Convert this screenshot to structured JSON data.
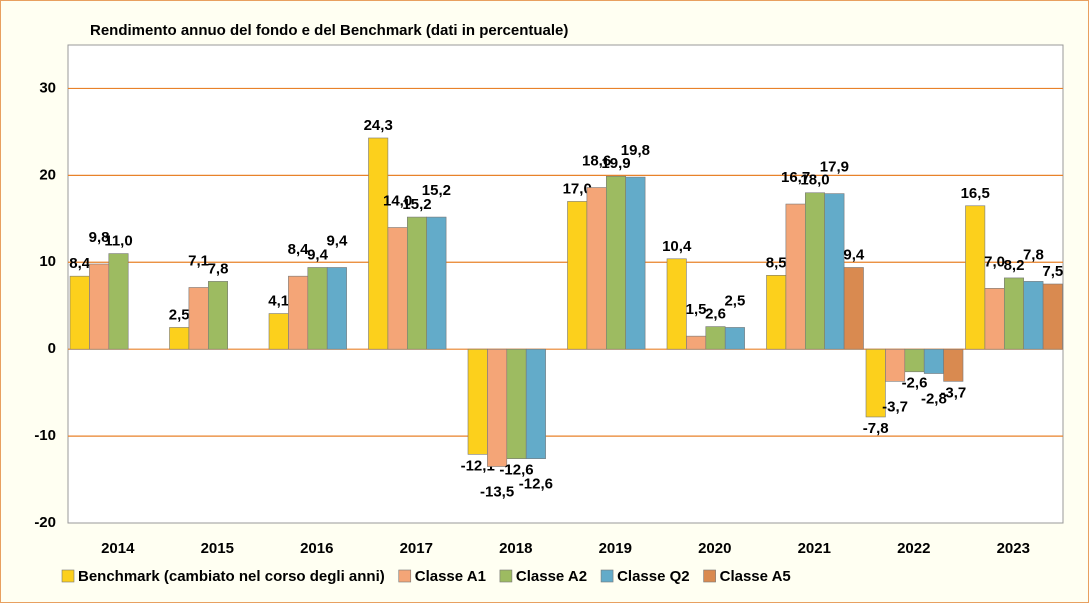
{
  "chart_data": {
    "type": "bar",
    "title": "Rendimento annuo del fondo e del Benchmark (dati in percentuale)",
    "categories": [
      "2014",
      "2015",
      "2016",
      "2017",
      "2018",
      "2019",
      "2020",
      "2021",
      "2022",
      "2023"
    ],
    "series": [
      {
        "name": "Benchmark (cambiato nel corso degli anni)",
        "color": "#fcd01c",
        "values": [
          8.4,
          2.5,
          4.1,
          24.3,
          -12.1,
          17.0,
          10.4,
          8.5,
          -7.8,
          16.5
        ],
        "value_labels": [
          "8,4",
          "2,5",
          "4,1",
          "24,3",
          "-12,1",
          "17,0",
          "10,4",
          "8,5",
          "-7,8",
          "16,5"
        ]
      },
      {
        "name": "Classe A1",
        "color": "#f4a577",
        "values": [
          9.8,
          7.1,
          8.4,
          14.0,
          -13.5,
          18.6,
          1.5,
          16.7,
          -3.7,
          7.0
        ],
        "value_labels": [
          "9,8",
          "7,1",
          "8,4",
          "14,0",
          "-13,5",
          "18,6",
          "1,5",
          "16,7",
          "-3,7",
          "7,0"
        ]
      },
      {
        "name": "Classe A2",
        "color": "#9dbb61",
        "values": [
          11.0,
          7.8,
          9.4,
          15.2,
          -12.6,
          19.9,
          2.6,
          18.0,
          -2.6,
          8.2
        ],
        "value_labels": [
          "11,0",
          "7,8",
          "9,4",
          "15,2",
          "-12,6",
          "19,9",
          "2,6",
          "18,0",
          "-2,6",
          "8,2"
        ]
      },
      {
        "name": "Classe Q2",
        "color": "#63abc9",
        "values": [
          null,
          null,
          9.4,
          15.2,
          -12.6,
          19.8,
          2.5,
          17.9,
          -2.8,
          7.8
        ],
        "value_labels": [
          null,
          null,
          "9,4",
          "15,2",
          "-12,6",
          "19,8",
          "2,5",
          "17,9",
          "-2,8",
          "7,8"
        ]
      },
      {
        "name": "Classe A5",
        "color": "#d98a50",
        "values": [
          null,
          null,
          null,
          null,
          null,
          null,
          null,
          9.4,
          -3.7,
          7.5
        ],
        "value_labels": [
          null,
          null,
          null,
          null,
          null,
          null,
          null,
          "9,4",
          "-3,7",
          "7,5"
        ]
      }
    ],
    "ylim": [
      -20,
      35
    ],
    "yticks": [
      -20,
      -10,
      0,
      10,
      20,
      30
    ],
    "grid": true
  }
}
